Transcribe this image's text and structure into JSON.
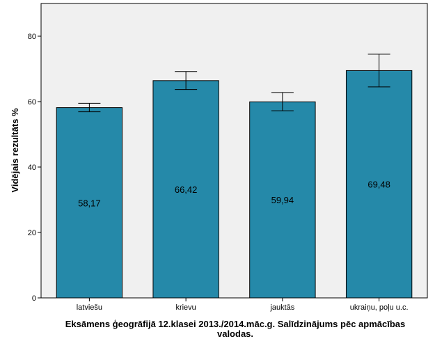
{
  "chart_data": {
    "type": "bar",
    "categories": [
      "latviešu",
      "krievu",
      "jauktās",
      "ukraiņu, poļu u.c."
    ],
    "values": [
      58.17,
      66.42,
      59.94,
      69.48
    ],
    "value_labels": [
      "58,17",
      "66,42",
      "59,94",
      "69,48"
    ],
    "error_bars": [
      {
        "low": 56.9,
        "high": 59.5
      },
      {
        "low": 63.7,
        "high": 69.2
      },
      {
        "low": 57.2,
        "high": 62.8
      },
      {
        "low": 64.5,
        "high": 74.5
      }
    ],
    "xlabel_lines": [
      "Eksāmens ģeogrāfijā 12.klasei 2013./2014.māc.g. Salīdzinājums pēc apmācības",
      "valodas."
    ],
    "ylabel": "Vidējais rezultāts %",
    "ylim": [
      0,
      90
    ],
    "yticks": [
      0,
      20,
      40,
      60,
      80
    ],
    "grid": false,
    "bar_color": "#2589a9",
    "plot_background": "#f0f0f0"
  }
}
